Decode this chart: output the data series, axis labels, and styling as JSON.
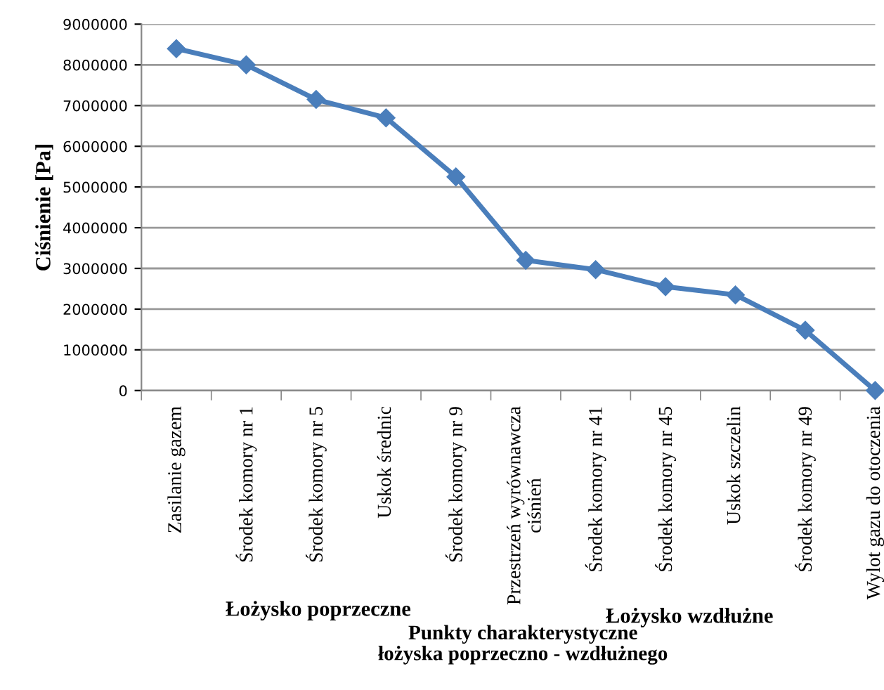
{
  "chart_data": {
    "type": "line",
    "xlabel": "Punkty charakterystyczne\nłożyska poprzeczno - wzdłużnego",
    "ylabel": "Ciśnienie [Pa]",
    "categories": [
      "Zasilanie gazem",
      "Środek komory nr 1",
      "Środek komory nr 5",
      "Uskok średnic",
      "Środek komory nr 9",
      "Przestrzeń wyrównawcza\nciśnień",
      "Środek komory nr 41",
      "Środek komory nr 45",
      "Uskok szczelin",
      "Środek komory nr 49",
      "Wylot gazu do otoczenia"
    ],
    "series": [
      {
        "color": "#4a7ebb",
        "values": [
          8400000,
          8000000,
          7150000,
          6700000,
          5250000,
          3200000,
          2970000,
          2550000,
          2350000,
          1480000,
          0
        ]
      }
    ],
    "ylim": [
      0,
      9000000
    ],
    "yticks": [
      0,
      1000000,
      2000000,
      3000000,
      4000000,
      5000000,
      6000000,
      7000000,
      8000000,
      9000000
    ],
    "grid": "y",
    "marker": "diamond",
    "line_style": "solid",
    "annotations": [
      "Łożysko poprzeczne",
      "Łożysko wzdłużne"
    ]
  }
}
